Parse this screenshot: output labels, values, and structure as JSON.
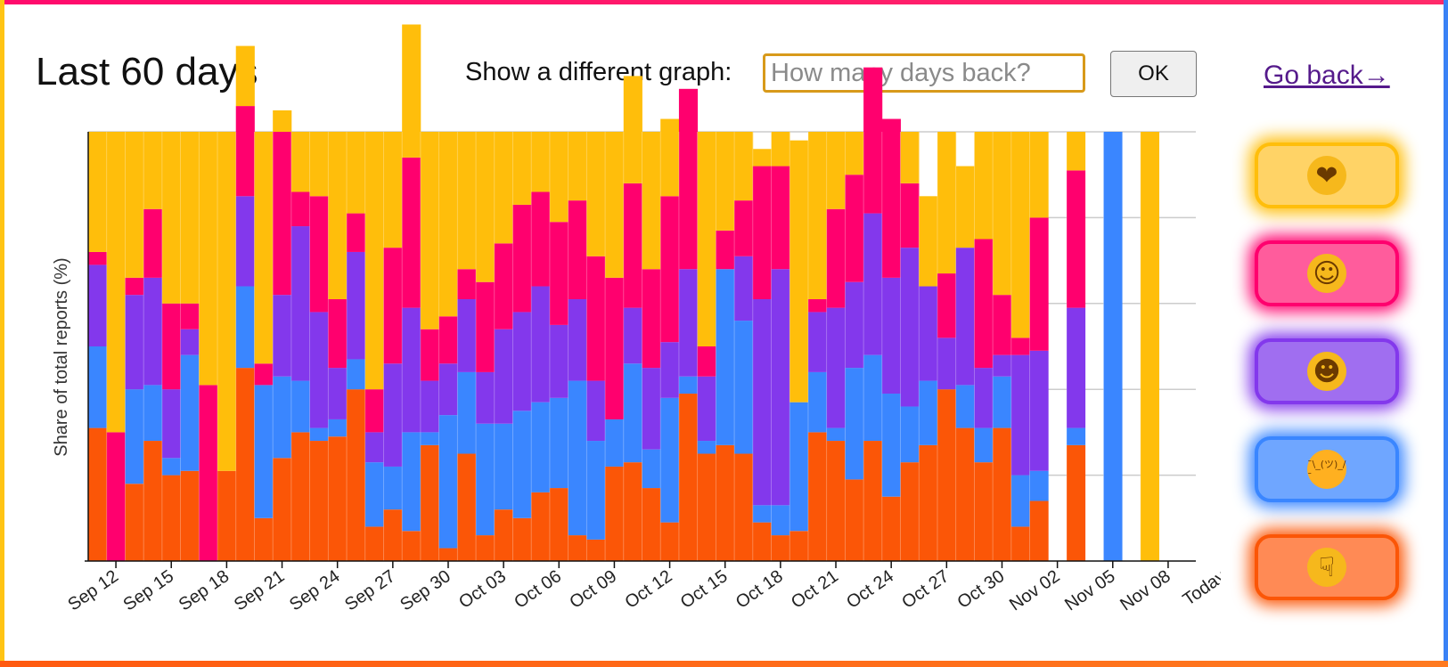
{
  "header": {
    "title": "Last 60 days",
    "prompt_label": "Show a different graph:",
    "days_placeholder": "How many days back?",
    "ok_label": "OK",
    "go_back_label": "Go back→"
  },
  "colors": {
    "yellow": "#FFBE0B",
    "pink": "#FF006E",
    "purple": "#8338EC",
    "blue": "#3A86FF",
    "orange": "#FB5607",
    "grid": "#cccccc",
    "frame_top": "#ff0a6c",
    "frame_left": "#ffc414",
    "frame_right": "#3a82f6",
    "frame_bottom": "#ff5a10"
  },
  "mood_buttons": [
    {
      "icon": "kissing-face-icon",
      "glyph": "❤",
      "bg": "#ffd366",
      "border": "#ffbe0b",
      "glow": "#ffbe0b",
      "face": "#f6b81c"
    },
    {
      "icon": "smiling-face-icon",
      "glyph": "☺",
      "bg": "#ff5c9c",
      "border": "#ff006e",
      "glow": "#ff006e",
      "face": "#f6b81c"
    },
    {
      "icon": "grinning-face-icon",
      "glyph": "☻",
      "bg": "#a06ef0",
      "border": "#8338ec",
      "glow": "#8338ec",
      "face": "#f6b81c"
    },
    {
      "icon": "shrug-icon",
      "glyph": "¯\\_(ツ)_/¯",
      "bg": "#6fa6ff",
      "border": "#3a86ff",
      "glow": "#3a86ff",
      "face": "#ffb020"
    },
    {
      "icon": "thumbs-down-icon",
      "glyph": "☟",
      "bg": "#ff8a55",
      "border": "#fb5607",
      "glow": "#fb5607",
      "face": "#f6b81c"
    }
  ],
  "chart_data": {
    "type": "bar",
    "stacked": "percent",
    "ylabel": "Share of total reports (%)",
    "ylim": [
      0,
      100
    ],
    "y_gridlines": [
      20,
      40,
      60,
      80,
      100
    ],
    "tick_labels_shown": [
      "Sep 12",
      "Sep 15",
      "Sep 18",
      "Sep 21",
      "Sep 24",
      "Sep 27",
      "Sep 30",
      "Oct 03",
      "Oct 06",
      "Oct 09",
      "Oct 12",
      "Oct 15",
      "Oct 18",
      "Oct 21",
      "Oct 24",
      "Oct 27",
      "Oct 30",
      "Nov 02",
      "Nov 05",
      "Nov 08",
      "Today"
    ],
    "x": [
      "Sep 11",
      "Sep 12",
      "Sep 13",
      "Sep 14",
      "Sep 15",
      "Sep 16",
      "Sep 17",
      "Sep 18",
      "Sep 19",
      "Sep 20",
      "Sep 21",
      "Sep 22",
      "Sep 23",
      "Sep 24",
      "Sep 25",
      "Sep 26",
      "Sep 27",
      "Sep 28",
      "Sep 29",
      "Sep 30",
      "Oct 01",
      "Oct 02",
      "Oct 03",
      "Oct 04",
      "Oct 05",
      "Oct 06",
      "Oct 07",
      "Oct 08",
      "Oct 09",
      "Oct 10",
      "Oct 11",
      "Oct 12",
      "Oct 13",
      "Oct 14",
      "Oct 15",
      "Oct 16",
      "Oct 17",
      "Oct 18",
      "Oct 19",
      "Oct 20",
      "Oct 21",
      "Oct 22",
      "Oct 23",
      "Oct 24",
      "Oct 25",
      "Oct 26",
      "Oct 27",
      "Oct 28",
      "Oct 29",
      "Oct 30",
      "Oct 31",
      "Nov 01",
      "Nov 02",
      "Nov 03",
      "Nov 04",
      "Nov 05",
      "Nov 06",
      "Nov 07",
      "Nov 08",
      "Nov 09"
    ],
    "series_order_bottom_to_top": [
      "orange",
      "blue",
      "purple",
      "pink",
      "yellow"
    ],
    "series": [
      {
        "color": "orange",
        "values": [
          31,
          0,
          18,
          28,
          20,
          21,
          0,
          21,
          45,
          10,
          24,
          30,
          28,
          29,
          40,
          8,
          12,
          7,
          27,
          3,
          25,
          6,
          12,
          10,
          16,
          17,
          6,
          5,
          22,
          23,
          17,
          9,
          39,
          25,
          27,
          25,
          9,
          6,
          7,
          30,
          28,
          19,
          28,
          15,
          23,
          27,
          40,
          31,
          23,
          31,
          8,
          14,
          0,
          27,
          0,
          0,
          0,
          0,
          0,
          0
        ]
      },
      {
        "color": "blue",
        "values": [
          19,
          0,
          22,
          13,
          4,
          27,
          0,
          0,
          19,
          31,
          19,
          12,
          3,
          4,
          7,
          15,
          10,
          23,
          3,
          31,
          19,
          26,
          20,
          25,
          21,
          21,
          36,
          23,
          11,
          23,
          9,
          29,
          4,
          3,
          41,
          31,
          4,
          7,
          30,
          14,
          3,
          26,
          20,
          24,
          13,
          15,
          0,
          10,
          8,
          12,
          12,
          7,
          0,
          4,
          0,
          100,
          0,
          0,
          0,
          0
        ]
      },
      {
        "color": "purple",
        "values": [
          19,
          0,
          22,
          25,
          16,
          6,
          0,
          0,
          21,
          0,
          19,
          36,
          27,
          12,
          25,
          7,
          24,
          29,
          12,
          12,
          17,
          12,
          22,
          23,
          27,
          17,
          19,
          14,
          0,
          13,
          19,
          13,
          25,
          15,
          0,
          15,
          48,
          55,
          0,
          14,
          28,
          20,
          33,
          27,
          37,
          22,
          12,
          32,
          14,
          5,
          28,
          28,
          0,
          28,
          0,
          0,
          0,
          0,
          0,
          0
        ]
      },
      {
        "color": "pink",
        "values": [
          3,
          30,
          4,
          16,
          20,
          6,
          41,
          0,
          21,
          5,
          38,
          8,
          27,
          16,
          9,
          10,
          27,
          35,
          12,
          11,
          7,
          21,
          20,
          25,
          22,
          24,
          23,
          29,
          33,
          29,
          23,
          34,
          42,
          7,
          9,
          13,
          31,
          24,
          0,
          3,
          23,
          25,
          34,
          37,
          15,
          0,
          15,
          0,
          30,
          14,
          4,
          31,
          0,
          32,
          0,
          0,
          0,
          0,
          0,
          0
        ]
      },
      {
        "color": "yellow",
        "values": [
          28,
          70,
          34,
          18,
          40,
          40,
          59,
          79,
          14,
          54,
          5,
          14,
          15,
          39,
          19,
          60,
          27,
          31,
          46,
          43,
          32,
          35,
          26,
          17,
          14,
          21,
          16,
          29,
          34,
          25,
          32,
          18,
          0,
          50,
          23,
          16,
          4,
          8,
          61,
          39,
          18,
          10,
          0,
          0,
          12,
          21,
          33,
          19,
          25,
          38,
          48,
          20,
          0,
          9,
          0,
          0,
          0,
          100,
          0,
          0
        ]
      }
    ]
  }
}
